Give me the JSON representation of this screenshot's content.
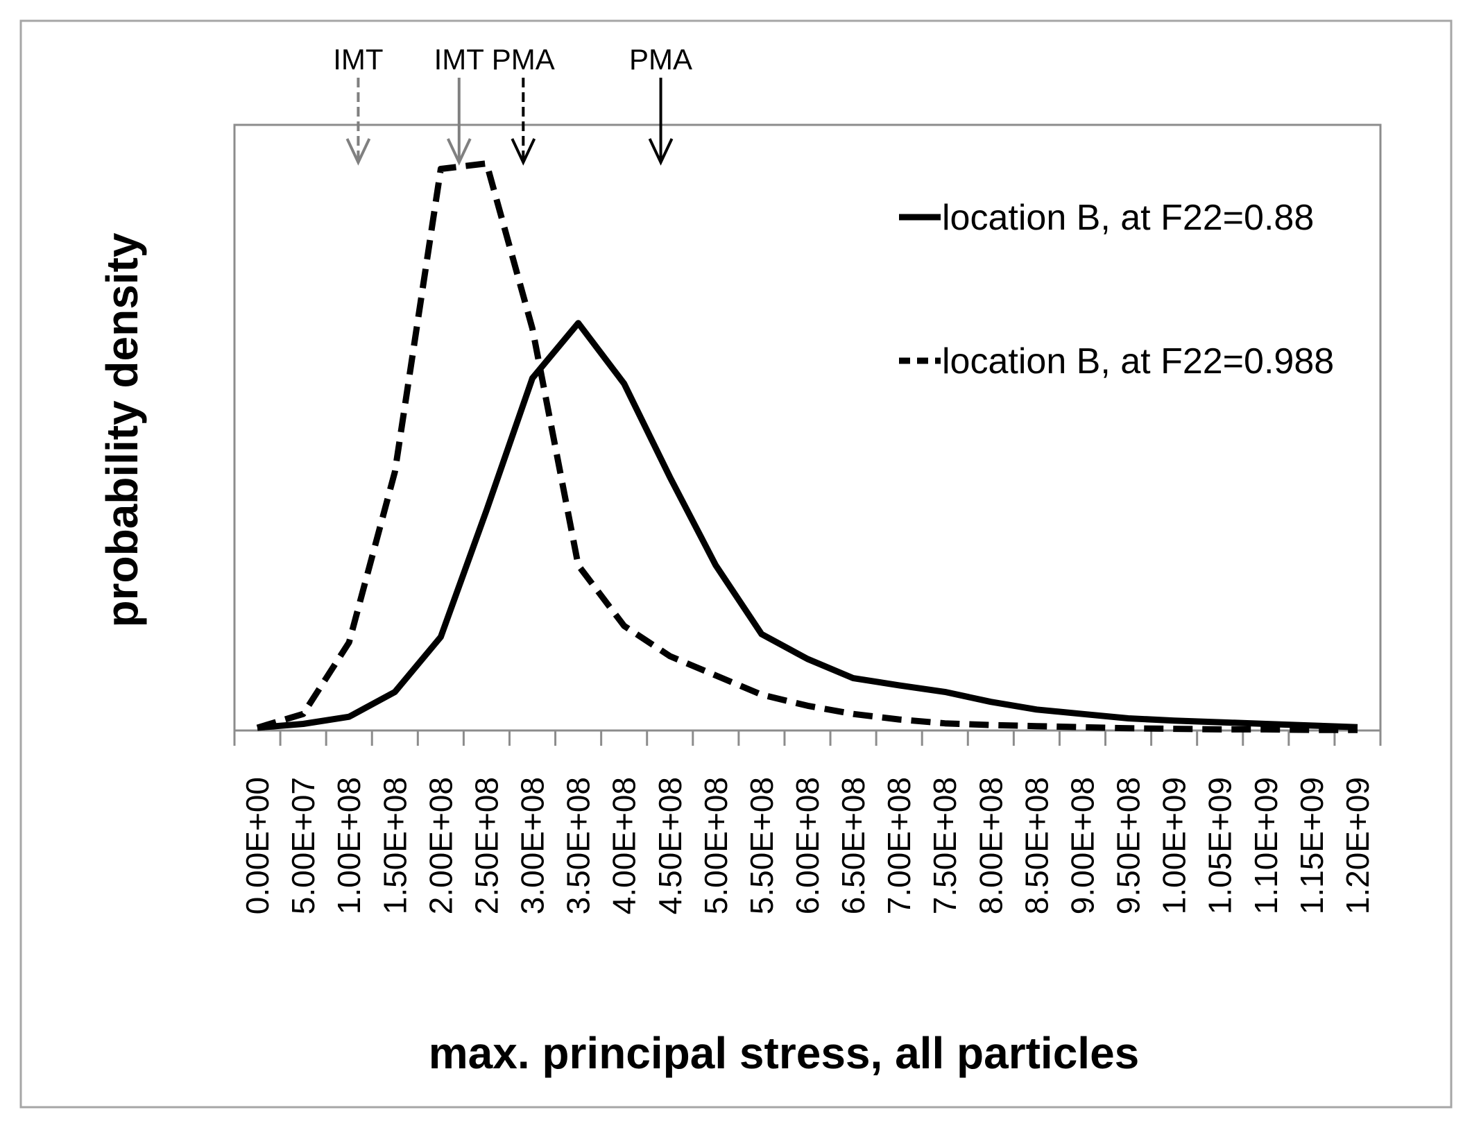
{
  "chart_data": {
    "type": "line",
    "xlabel": "max. principal stress, all particles",
    "ylabel": "probability density",
    "categories": [
      "0.00E+00",
      "5.00E+07",
      "1.00E+08",
      "1.50E+08",
      "2.00E+08",
      "2.50E+08",
      "3.00E+08",
      "3.50E+08",
      "4.00E+08",
      "4.50E+08",
      "5.00E+08",
      "5.50E+08",
      "6.00E+08",
      "6.50E+08",
      "7.00E+08",
      "7.50E+08",
      "8.00E+08",
      "8.50E+08",
      "9.00E+08",
      "9.50E+08",
      "1.00E+09",
      "1.05E+09",
      "1.10E+09",
      "1.15E+09",
      "1.20E+09"
    ],
    "xlim": [
      0,
      1200000000
    ],
    "ylim": [
      0,
      1.1
    ],
    "grid": false,
    "legend": "top-right",
    "series": [
      {
        "name": "location B, at F22=0.88",
        "style": "solid",
        "color": "#000000",
        "values": [
          0.005,
          0.012,
          0.025,
          0.07,
          0.17,
          0.4,
          0.64,
          0.74,
          0.63,
          0.46,
          0.3,
          0.175,
          0.13,
          0.095,
          0.082,
          0.07,
          0.052,
          0.038,
          0.03,
          0.022,
          0.018,
          0.015,
          0.012,
          0.009,
          0.006
        ]
      },
      {
        "name": "location B, at F22=0.988",
        "style": "dashed",
        "color": "#000000",
        "values": [
          0.005,
          0.03,
          0.16,
          0.47,
          1.02,
          1.03,
          0.73,
          0.3,
          0.19,
          0.135,
          0.1,
          0.065,
          0.045,
          0.03,
          0.02,
          0.013,
          0.01,
          0.008,
          0.006,
          0.004,
          0.003,
          0.002,
          0.002,
          0.001,
          0.001
        ]
      }
    ],
    "annotations": [
      {
        "label": "IMT",
        "x": 110000000,
        "style": "dashed",
        "color": "#808080"
      },
      {
        "label": "IMT",
        "x": 220000000,
        "style": "solid",
        "color": "#808080"
      },
      {
        "label": "PMA",
        "x": 290000000,
        "style": "dashed",
        "color": "#000000"
      },
      {
        "label": "PMA",
        "x": 440000000,
        "style": "solid",
        "color": "#000000"
      }
    ]
  }
}
